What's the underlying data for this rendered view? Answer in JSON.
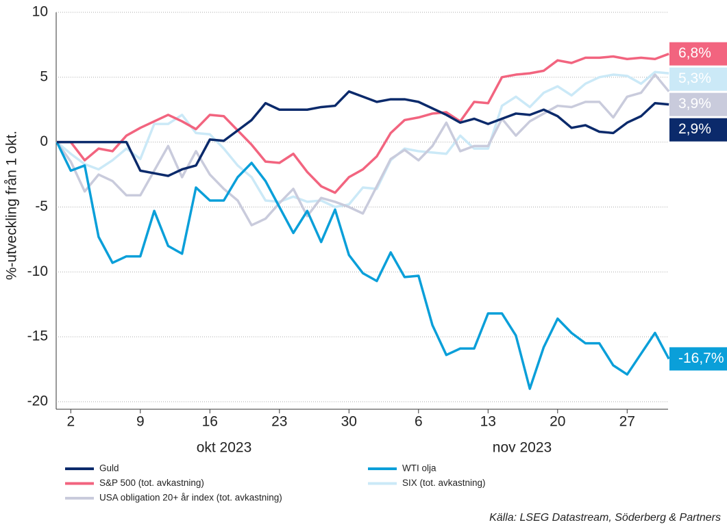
{
  "chart_data": {
    "type": "line",
    "y_label": "%-utveckling från 1 okt.",
    "categories": [
      null,
      "2",
      null,
      null,
      null,
      null,
      "9",
      null,
      null,
      null,
      null,
      "16",
      null,
      null,
      null,
      null,
      "23",
      null,
      null,
      null,
      null,
      "30",
      null,
      null,
      null,
      null,
      "6",
      null,
      null,
      null,
      null,
      "13",
      null,
      null,
      null,
      null,
      "20",
      null,
      null,
      null,
      null,
      "27",
      null,
      null,
      null
    ],
    "month_labels": [
      "okt 2023",
      "nov 2023"
    ],
    "ylim": [
      -20,
      10
    ],
    "yticks": [
      10,
      5,
      0,
      -5,
      -10,
      -15,
      -20
    ],
    "grid": true,
    "source": "Källa: LSEG Datastream, Söderberg & Partners",
    "series": [
      {
        "name": "Guld",
        "color": "#0b2a6b",
        "end_label": "2,9%",
        "values": [
          0,
          0,
          0,
          0,
          0,
          0,
          -2.2,
          -2.4,
          -2.6,
          -2.1,
          -1.8,
          0.2,
          0.1,
          0.9,
          1.7,
          3.0,
          2.5,
          2.5,
          2.5,
          2.7,
          2.8,
          3.9,
          3.5,
          3.1,
          3.3,
          3.3,
          3.1,
          2.6,
          2.1,
          1.5,
          1.8,
          1.4,
          1.8,
          2.2,
          2.1,
          2.5,
          2.0,
          1.1,
          1.3,
          0.8,
          0.7,
          1.5,
          2.0,
          3.0,
          2.9
        ]
      },
      {
        "name": "S&P 500 (tot. avkastning)",
        "color": "#f2647f",
        "end_label": "6,8%",
        "values": [
          0,
          0,
          -1.4,
          -0.5,
          -0.7,
          0.5,
          1.1,
          1.6,
          2.1,
          1.6,
          1.0,
          2.1,
          2.0,
          0.9,
          -0.2,
          -1.5,
          -1.6,
          -0.9,
          -2.3,
          -3.4,
          -3.9,
          -2.7,
          -2.1,
          -1.1,
          0.7,
          1.7,
          1.9,
          2.2,
          2.3,
          1.6,
          3.1,
          3.0,
          5.0,
          5.2,
          5.3,
          5.5,
          6.3,
          6.1,
          6.5,
          6.5,
          6.6,
          6.4,
          6.5,
          6.4,
          6.8
        ]
      },
      {
        "name": "WTI olja",
        "color": "#0a9fd9",
        "end_label": "-16,7%",
        "values": [
          0,
          -2.2,
          -1.8,
          -7.3,
          -9.3,
          -8.8,
          -8.8,
          -5.3,
          -8.0,
          -8.6,
          -3.5,
          -4.5,
          -4.5,
          -2.7,
          -1.6,
          -3.0,
          -5.0,
          -7.0,
          -5.3,
          -7.7,
          -5.2,
          -8.7,
          -10.1,
          -10.7,
          -8.5,
          -10.4,
          -10.3,
          -14.1,
          -16.4,
          -15.9,
          -15.9,
          -13.2,
          -13.2,
          -14.9,
          -19.0,
          -15.8,
          -13.6,
          -14.7,
          -15.5,
          -15.5,
          -17.2,
          -17.9,
          -16.3,
          -14.7,
          -16.7
        ]
      },
      {
        "name": "SIX (tot. avkastning)",
        "color": "#cbe9f7",
        "end_label": "5,3%",
        "values": [
          0,
          -0.9,
          -1.7,
          -2.1,
          -1.4,
          -0.5,
          -1.3,
          1.4,
          1.4,
          2.1,
          0.7,
          0.6,
          -0.5,
          -1.8,
          -2.7,
          -4.5,
          -4.6,
          -4.2,
          -4.6,
          -4.5,
          -5.0,
          -4.8,
          -3.5,
          -3.6,
          -1.4,
          -0.5,
          -0.7,
          -0.8,
          -0.9,
          0.5,
          -0.5,
          -0.5,
          2.8,
          3.5,
          2.7,
          3.8,
          4.3,
          3.6,
          4.5,
          5.0,
          5.2,
          5.1,
          4.5,
          5.4,
          5.3
        ]
      },
      {
        "name": "USA obligation 20+ år index (tot. avkastning)",
        "color": "#c9cbdc",
        "end_label": "3,9%",
        "values": [
          0,
          -1.5,
          -3.8,
          -2.5,
          -3.0,
          -4.1,
          -4.1,
          -2.2,
          -0.3,
          -2.7,
          -0.7,
          -2.5,
          -3.6,
          -4.5,
          -6.4,
          -5.9,
          -4.7,
          -3.6,
          -5.7,
          -4.3,
          -4.6,
          -5.0,
          -5.5,
          -3.4,
          -1.3,
          -0.6,
          -1.4,
          -0.3,
          1.5,
          -0.7,
          -0.3,
          -0.3,
          1.8,
          0.5,
          1.6,
          2.2,
          2.8,
          2.7,
          3.1,
          3.1,
          1.9,
          3.5,
          3.8,
          5.2,
          3.9
        ]
      }
    ]
  }
}
